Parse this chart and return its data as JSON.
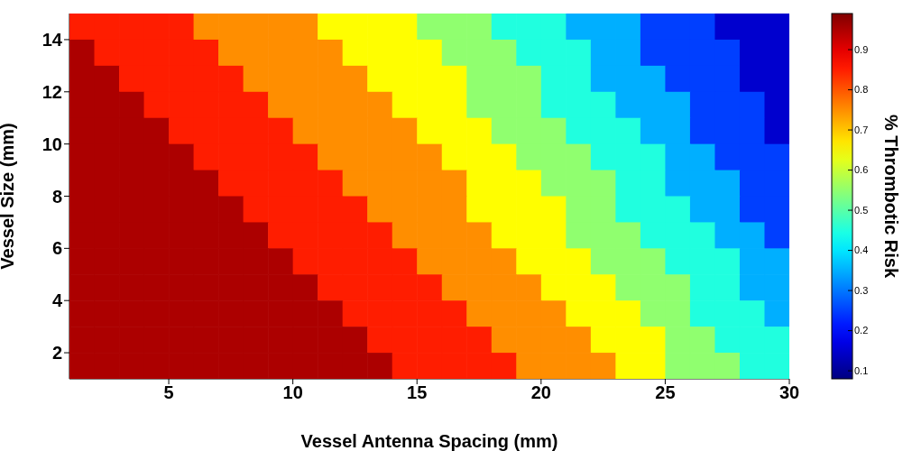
{
  "chart_data": {
    "type": "heatmap",
    "xlabel": "Vessel Antenna Spacing (mm)",
    "ylabel": "Vessel Size (mm)",
    "clabel": "% Thrombotic Risk",
    "x": [
      1.5,
      2.5,
      3.5,
      4.5,
      5.5,
      6.5,
      7.5,
      8.5,
      9.5,
      10.5,
      11.5,
      12.5,
      13.5,
      14.5,
      15.5,
      16.5,
      17.5,
      18.5,
      19.5,
      20.5,
      21.5,
      22.5,
      23.5,
      24.5,
      25.5,
      26.5,
      27.5,
      28.5,
      29.5
    ],
    "y": [
      14.5,
      13.5,
      12.5,
      11.5,
      10.5,
      9.5,
      8.5,
      7.5,
      6.5,
      5.5,
      4.5,
      3.5,
      2.5,
      1.5
    ],
    "cells": [
      [
        0.85,
        0.85,
        0.85,
        0.85,
        0.85,
        0.75,
        0.75,
        0.75,
        0.75,
        0.75,
        0.65,
        0.65,
        0.65,
        0.65,
        0.55,
        0.55,
        0.55,
        0.45,
        0.45,
        0.45,
        0.35,
        0.35,
        0.35,
        0.25,
        0.25,
        0.25,
        0.15,
        0.15,
        0.15
      ],
      [
        0.95,
        0.85,
        0.85,
        0.85,
        0.85,
        0.85,
        0.75,
        0.75,
        0.75,
        0.75,
        0.75,
        0.65,
        0.65,
        0.65,
        0.65,
        0.55,
        0.55,
        0.55,
        0.45,
        0.45,
        0.45,
        0.35,
        0.35,
        0.25,
        0.25,
        0.25,
        0.25,
        0.15,
        0.15
      ],
      [
        0.95,
        0.95,
        0.85,
        0.85,
        0.85,
        0.85,
        0.85,
        0.75,
        0.75,
        0.75,
        0.75,
        0.75,
        0.65,
        0.65,
        0.65,
        0.65,
        0.55,
        0.55,
        0.55,
        0.45,
        0.45,
        0.35,
        0.35,
        0.35,
        0.25,
        0.25,
        0.25,
        0.15,
        0.15
      ],
      [
        0.95,
        0.95,
        0.95,
        0.85,
        0.85,
        0.85,
        0.85,
        0.85,
        0.75,
        0.75,
        0.75,
        0.75,
        0.75,
        0.65,
        0.65,
        0.65,
        0.55,
        0.55,
        0.55,
        0.45,
        0.45,
        0.45,
        0.35,
        0.35,
        0.35,
        0.25,
        0.25,
        0.25,
        0.15
      ],
      [
        0.95,
        0.95,
        0.95,
        0.95,
        0.85,
        0.85,
        0.85,
        0.85,
        0.85,
        0.75,
        0.75,
        0.75,
        0.75,
        0.75,
        0.65,
        0.65,
        0.65,
        0.55,
        0.55,
        0.55,
        0.45,
        0.45,
        0.45,
        0.35,
        0.35,
        0.25,
        0.25,
        0.25,
        0.15
      ],
      [
        0.95,
        0.95,
        0.95,
        0.95,
        0.95,
        0.85,
        0.85,
        0.85,
        0.85,
        0.85,
        0.75,
        0.75,
        0.75,
        0.75,
        0.75,
        0.65,
        0.65,
        0.65,
        0.55,
        0.55,
        0.55,
        0.45,
        0.45,
        0.45,
        0.35,
        0.35,
        0.25,
        0.25,
        0.25
      ],
      [
        0.95,
        0.95,
        0.95,
        0.95,
        0.95,
        0.95,
        0.85,
        0.85,
        0.85,
        0.85,
        0.85,
        0.75,
        0.75,
        0.75,
        0.75,
        0.75,
        0.65,
        0.65,
        0.65,
        0.55,
        0.55,
        0.55,
        0.45,
        0.45,
        0.35,
        0.35,
        0.35,
        0.25,
        0.25
      ],
      [
        0.95,
        0.95,
        0.95,
        0.95,
        0.95,
        0.95,
        0.95,
        0.85,
        0.85,
        0.85,
        0.85,
        0.85,
        0.75,
        0.75,
        0.75,
        0.75,
        0.65,
        0.65,
        0.65,
        0.65,
        0.55,
        0.55,
        0.45,
        0.45,
        0.45,
        0.35,
        0.35,
        0.25,
        0.25
      ],
      [
        0.95,
        0.95,
        0.95,
        0.95,
        0.95,
        0.95,
        0.95,
        0.95,
        0.85,
        0.85,
        0.85,
        0.85,
        0.85,
        0.75,
        0.75,
        0.75,
        0.75,
        0.65,
        0.65,
        0.65,
        0.55,
        0.55,
        0.55,
        0.45,
        0.45,
        0.45,
        0.35,
        0.35,
        0.25
      ],
      [
        0.95,
        0.95,
        0.95,
        0.95,
        0.95,
        0.95,
        0.95,
        0.95,
        0.95,
        0.85,
        0.85,
        0.85,
        0.85,
        0.85,
        0.75,
        0.75,
        0.75,
        0.75,
        0.65,
        0.65,
        0.65,
        0.55,
        0.55,
        0.55,
        0.45,
        0.45,
        0.45,
        0.35,
        0.35
      ],
      [
        0.95,
        0.95,
        0.95,
        0.95,
        0.95,
        0.95,
        0.95,
        0.95,
        0.95,
        0.95,
        0.85,
        0.85,
        0.85,
        0.85,
        0.85,
        0.75,
        0.75,
        0.75,
        0.75,
        0.65,
        0.65,
        0.65,
        0.55,
        0.55,
        0.55,
        0.45,
        0.45,
        0.35,
        0.35
      ],
      [
        0.95,
        0.95,
        0.95,
        0.95,
        0.95,
        0.95,
        0.95,
        0.95,
        0.95,
        0.95,
        0.95,
        0.85,
        0.85,
        0.85,
        0.85,
        0.85,
        0.75,
        0.75,
        0.75,
        0.75,
        0.65,
        0.65,
        0.65,
        0.55,
        0.55,
        0.45,
        0.45,
        0.45,
        0.35
      ],
      [
        0.95,
        0.95,
        0.95,
        0.95,
        0.95,
        0.95,
        0.95,
        0.95,
        0.95,
        0.95,
        0.95,
        0.95,
        0.85,
        0.85,
        0.85,
        0.85,
        0.85,
        0.75,
        0.75,
        0.75,
        0.75,
        0.65,
        0.65,
        0.65,
        0.55,
        0.55,
        0.45,
        0.45,
        0.45
      ],
      [
        0.95,
        0.95,
        0.95,
        0.95,
        0.95,
        0.95,
        0.95,
        0.95,
        0.95,
        0.95,
        0.95,
        0.95,
        0.95,
        0.85,
        0.85,
        0.85,
        0.85,
        0.85,
        0.75,
        0.75,
        0.75,
        0.75,
        0.65,
        0.65,
        0.55,
        0.55,
        0.55,
        0.45,
        0.45
      ]
    ],
    "xlim": [
      1,
      30
    ],
    "xticks": [
      5,
      10,
      15,
      20,
      25,
      30
    ],
    "ylim": [
      1,
      15
    ],
    "yticks": [
      2,
      4,
      6,
      8,
      10,
      12,
      14
    ],
    "clim": [
      0.08,
      0.99
    ],
    "cticks": [
      0.1,
      0.2,
      0.3,
      0.4,
      0.5,
      0.6,
      0.7,
      0.8,
      0.9
    ]
  }
}
